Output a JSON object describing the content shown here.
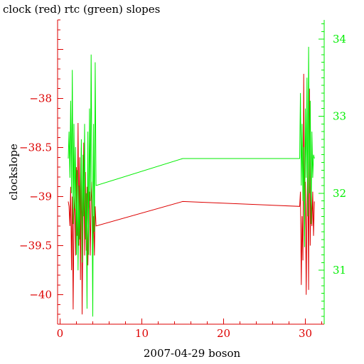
{
  "chart_data": {
    "type": "line",
    "title": "clock (red) rtc (green) slopes",
    "xlabel": "2007-04-29 boson",
    "ylabel": "clockslope",
    "ylabel_right": "",
    "xlim": [
      -0.3,
      32.3
    ],
    "ylim": [
      -40.3,
      -37.2
    ],
    "ylim_right": [
      30.3,
      34.25
    ],
    "xticks": [
      0,
      10,
      20,
      30
    ],
    "xtick_labels": [
      "0",
      "10",
      "20",
      "30"
    ],
    "yticks": [
      -38,
      -38.5,
      -39,
      -39.5,
      -40
    ],
    "ytick_labels": [
      "−38",
      "−38.5",
      "−39",
      "−39.5",
      "−40"
    ],
    "yticks_right": [
      31,
      32,
      33,
      34
    ],
    "ytick_labels_right": [
      "31",
      "32",
      "33",
      "34"
    ],
    "grid": false,
    "legend": "none",
    "colors": {
      "clock": "#dd0000",
      "rtc": "#00ee00",
      "axis_left": "#dd0000",
      "axis_right": "#00ee00",
      "frame": "#000000"
    },
    "series": [
      {
        "key": "clock",
        "axis": "left",
        "color": "#dd0000",
        "x": [
          1.0,
          1.1,
          1.2,
          1.3,
          1.4,
          1.5,
          1.6,
          1.7,
          1.8,
          1.9,
          2.0,
          2.1,
          2.2,
          2.3,
          2.4,
          2.5,
          2.6,
          2.7,
          2.8,
          2.9,
          3.0,
          3.1,
          3.2,
          3.3,
          3.4,
          3.5,
          3.6,
          3.7,
          3.8,
          3.9,
          4.0,
          4.1,
          4.2,
          4.3,
          4.4,
          15.0,
          29.3,
          29.4,
          29.5,
          29.6,
          29.7,
          29.8,
          29.9,
          30.0,
          30.1,
          30.2,
          30.3,
          30.4,
          30.5,
          30.6,
          30.7,
          30.8,
          30.9,
          31.0,
          31.1
        ],
        "y": [
          -39.05,
          -39.1,
          -39.3,
          -38.9,
          -39.75,
          -39.0,
          -40.15,
          -39.2,
          -38.95,
          -39.6,
          -38.7,
          -39.4,
          -38.25,
          -39.5,
          -38.6,
          -39.85,
          -38.5,
          -40.2,
          -39.3,
          -38.45,
          -39.6,
          -38.75,
          -39.55,
          -38.9,
          -39.7,
          -39.2,
          -38.95,
          -39.6,
          -39.05,
          -38.85,
          -39.55,
          -39.2,
          -39.6,
          -39.1,
          -39.3,
          -39.05,
          -39.1,
          -38.95,
          -39.9,
          -39.2,
          -39.65,
          -37.75,
          -39.4,
          -38.85,
          -40.0,
          -39.1,
          -38.6,
          -39.95,
          -37.9,
          -39.5,
          -38.8,
          -39.3,
          -38.95,
          -39.4,
          -39.05
        ]
      },
      {
        "key": "rtc",
        "axis": "right",
        "color": "#00ee00",
        "x": [
          1.0,
          1.1,
          1.2,
          1.3,
          1.4,
          1.5,
          1.6,
          1.7,
          1.8,
          1.9,
          2.0,
          2.1,
          2.2,
          2.3,
          2.4,
          2.5,
          2.6,
          2.7,
          2.8,
          2.9,
          3.0,
          3.1,
          3.2,
          3.3,
          3.4,
          3.5,
          3.6,
          3.7,
          3.8,
          3.9,
          4.0,
          4.1,
          4.2,
          4.3,
          4.4,
          15.0,
          29.3,
          29.4,
          29.5,
          29.6,
          29.7,
          29.8,
          29.9,
          30.0,
          30.1,
          30.2,
          30.3,
          30.4,
          30.5,
          30.6,
          30.7,
          30.8,
          30.9,
          31.0,
          31.1
        ],
        "y": [
          32.45,
          32.8,
          32.2,
          33.2,
          32.0,
          33.6,
          31.6,
          32.9,
          31.8,
          32.6,
          31.2,
          32.3,
          31.0,
          32.1,
          31.4,
          31.8,
          32.7,
          31.1,
          32.5,
          31.7,
          32.9,
          31.4,
          32.0,
          30.5,
          32.8,
          31.2,
          33.1,
          31.9,
          33.8,
          32.2,
          30.4,
          32.9,
          31.5,
          33.7,
          32.1,
          32.45,
          32.45,
          33.3,
          32.1,
          32.9,
          31.9,
          32.6,
          31.3,
          33.1,
          32.2,
          33.5,
          31.7,
          33.9,
          32.0,
          33.2,
          31.6,
          32.8,
          32.2,
          32.5,
          32.45
        ]
      }
    ]
  }
}
